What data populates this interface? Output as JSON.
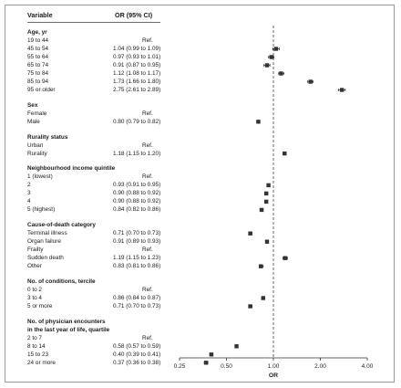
{
  "header": {
    "variable": "Variable",
    "or_ci": "OR (95% CI)"
  },
  "rows": [
    {
      "label": "Age, yr",
      "type": "section"
    },
    {
      "label": "19 to 44",
      "ci": "Ref.",
      "ref": true
    },
    {
      "label": "45 to 54",
      "ci": "1.04 (0.99 to 1.09)",
      "or": 1.04,
      "lo": 0.99,
      "hi": 1.09
    },
    {
      "label": "55 to 64",
      "ci": "0.97 (0.93 to 1.01)",
      "or": 0.97,
      "lo": 0.93,
      "hi": 1.01
    },
    {
      "label": "65 to 74",
      "ci": "0.91 (0.87 to 0.95)",
      "or": 0.91,
      "lo": 0.87,
      "hi": 0.95
    },
    {
      "label": "75 to 84",
      "ci": "1.12 (1.08 to 1.17)",
      "or": 1.12,
      "lo": 1.08,
      "hi": 1.17
    },
    {
      "label": "85 to 94",
      "ci": "1.73 (1.66 to 1.80)",
      "or": 1.73,
      "lo": 1.66,
      "hi": 1.8
    },
    {
      "label": "95 or older",
      "ci": "2.75 (2.61 to 2.89)",
      "or": 2.75,
      "lo": 2.61,
      "hi": 2.89
    },
    {
      "type": "gap"
    },
    {
      "label": "Sex",
      "type": "section"
    },
    {
      "label": "Female",
      "ci": "Ref.",
      "ref": true
    },
    {
      "label": "Male",
      "ci": "0.80 (0.79 to 0.82)",
      "or": 0.8,
      "lo": 0.79,
      "hi": 0.82
    },
    {
      "type": "gap"
    },
    {
      "label": "Rurality status",
      "type": "section"
    },
    {
      "label": "Urban",
      "ci": "Ref.",
      "ref": true
    },
    {
      "label": "Rurality",
      "ci": "1.18 (1.15 to 1.20)",
      "or": 1.18,
      "lo": 1.15,
      "hi": 1.2
    },
    {
      "type": "gap"
    },
    {
      "label": "Neighbourhood income quintile",
      "type": "section"
    },
    {
      "label": "1 (lowest)",
      "ci": "Ref.",
      "ref": true
    },
    {
      "label": "2",
      "ci": "0.93 (0.91 to 0.95)",
      "or": 0.93,
      "lo": 0.91,
      "hi": 0.95
    },
    {
      "label": "3",
      "ci": "0.90 (0.88 to 0.92)",
      "or": 0.9,
      "lo": 0.88,
      "hi": 0.92
    },
    {
      "label": "4",
      "ci": "0.90 (0.88 to 0.92)",
      "or": 0.9,
      "lo": 0.88,
      "hi": 0.92
    },
    {
      "label": "5 (highest)",
      "ci": "0.84 (0.82 to 0.86)",
      "or": 0.84,
      "lo": 0.82,
      "hi": 0.86
    },
    {
      "type": "gap"
    },
    {
      "label": "Cause-of-death category",
      "type": "section"
    },
    {
      "label": "Terminal illness",
      "ci": "0.71 (0.70 to 0.73)",
      "or": 0.71,
      "lo": 0.7,
      "hi": 0.73
    },
    {
      "label": "Organ failure",
      "ci": "0.91 (0.89 to 0.93)",
      "or": 0.91,
      "lo": 0.89,
      "hi": 0.93
    },
    {
      "label": "Frailty",
      "ci": "Ref.",
      "ref": true
    },
    {
      "label": "Sudden death",
      "ci": "1.19 (1.15 to 1.23)",
      "or": 1.19,
      "lo": 1.15,
      "hi": 1.23
    },
    {
      "label": "Other",
      "ci": "0.83 (0.81 to 0.86)",
      "or": 0.83,
      "lo": 0.81,
      "hi": 0.86
    },
    {
      "type": "gap"
    },
    {
      "label": "No. of conditions, tercile",
      "type": "section"
    },
    {
      "label": "0 to 2",
      "ci": "Ref.",
      "ref": true
    },
    {
      "label": "3 to 4",
      "ci": "0.86 (0.84 to 0.87)",
      "or": 0.86,
      "lo": 0.84,
      "hi": 0.87
    },
    {
      "label": "5 or more",
      "ci": "0.71 (0.70 to 0.73)",
      "or": 0.71,
      "lo": 0.7,
      "hi": 0.73
    },
    {
      "type": "gap"
    },
    {
      "label": "No. of physician encounters",
      "type": "section"
    },
    {
      "label": "in the last year of life, quartile",
      "type": "section"
    },
    {
      "label": "2 to 7",
      "ci": "Ref.",
      "ref": true
    },
    {
      "label": "8 to 14",
      "ci": "0.58 (0.57 to 0.59)",
      "or": 0.58,
      "lo": 0.57,
      "hi": 0.59
    },
    {
      "label": "15 to 23",
      "ci": "0.40 (0.39 to 0.41)",
      "or": 0.4,
      "lo": 0.39,
      "hi": 0.41
    },
    {
      "label": "24 or more",
      "ci": "0.37 (0.36 to 0.38)",
      "or": 0.37,
      "lo": 0.36,
      "hi": 0.38
    }
  ],
  "chart_data": {
    "type": "scatter",
    "subtype": "forest-plot",
    "x_scale": "log",
    "xlim": [
      0.25,
      4.0
    ],
    "x_ticks": [
      0.25,
      0.5,
      1.0,
      2.0,
      4.0
    ],
    "x_tick_labels": [
      "0.25",
      "0.50",
      "1.00",
      "2.00",
      "4.00"
    ],
    "xlabel": "OR",
    "reference_line": 1.0,
    "categories": [
      "45 to 54",
      "55 to 64",
      "65 to 74",
      "75 to 84",
      "85 to 94",
      "95 or older",
      "Male",
      "Rurality",
      "2",
      "3",
      "4",
      "5 (highest)",
      "Terminal illness",
      "Organ failure",
      "Sudden death",
      "Other",
      "3 to 4",
      "5 or more",
      "8 to 14",
      "15 to 23",
      "24 or more"
    ],
    "values": [
      1.04,
      0.97,
      0.91,
      1.12,
      1.73,
      2.75,
      0.8,
      1.18,
      0.93,
      0.9,
      0.9,
      0.84,
      0.71,
      0.91,
      1.19,
      0.83,
      0.86,
      0.71,
      0.58,
      0.4,
      0.37
    ]
  },
  "colors": {
    "marker": "#333333",
    "axis": "#333333",
    "reference": "#555555",
    "frame": "#9a9a9a"
  }
}
